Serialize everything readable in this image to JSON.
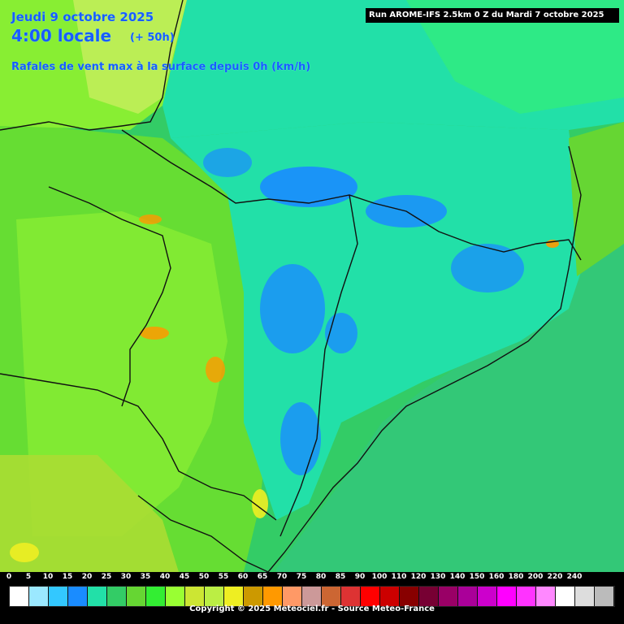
{
  "header": {
    "date": "Jeudi 9 octobre 2025",
    "hour": "4:00 locale",
    "offset": "(+ 50h)",
    "parameter": "Rafales de vent max à la surface depuis 0h (km/h)"
  },
  "run_label": "Run AROME-IFS 2.5km 0 Z du Mardi 7 octobre 2025",
  "legend": {
    "ticks": [
      "0",
      "5",
      "10",
      "15",
      "20",
      "25",
      "30",
      "35",
      "40",
      "45",
      "50",
      "55",
      "60",
      "65",
      "70",
      "75",
      "80",
      "85",
      "90",
      "100",
      "110",
      "120",
      "130",
      "140",
      "150",
      "160",
      "180",
      "200",
      "220",
      "240"
    ],
    "colors": [
      "#ffffff",
      "#9be8ff",
      "#33c8ff",
      "#1a8cff",
      "#22e0a8",
      "#33cc66",
      "#66d633",
      "#33ee33",
      "#99ff33",
      "#cce633",
      "#bbee44",
      "#eeee22",
      "#cc9900",
      "#ff9900",
      "#ff9966",
      "#cc9999",
      "#cc6633",
      "#dd3333",
      "#ff0000",
      "#cc0000",
      "#880000",
      "#770033",
      "#990066",
      "#aa0099",
      "#cc00cc",
      "#ff00ff",
      "#ff33ff",
      "#ff88ff",
      "#ffffff",
      "#dddddd",
      "#bbbbbb"
    ]
  },
  "copyright": "Copyright © 2025 Meteociel.fr - Source Meteo-France"
}
